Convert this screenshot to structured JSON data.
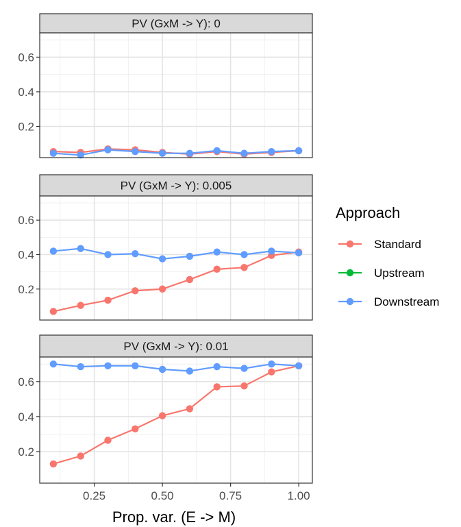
{
  "chart_data": {
    "type": "line",
    "xlabel": "Prop. var. (E -> M)",
    "x_ticks": [
      "0.25",
      "0.50",
      "0.75",
      "1.00"
    ],
    "x_tick_values": [
      0.25,
      0.5,
      0.75,
      1.0
    ],
    "xlim": [
      0.05,
      1.05
    ],
    "ylim": [
      0.02,
      0.74
    ],
    "y_ticks": [
      "0.2",
      "0.4",
      "0.6"
    ],
    "y_tick_values": [
      0.2,
      0.4,
      0.6
    ],
    "grid": true,
    "legend": {
      "title": "Approach",
      "position": "right",
      "entries": [
        {
          "label": "Standard",
          "color": "#F8766D"
        },
        {
          "label": "Upstream",
          "color": "#00BA38"
        },
        {
          "label": "Downstream",
          "color": "#619CFF"
        }
      ]
    },
    "x": [
      0.1,
      0.2,
      0.3,
      0.4,
      0.5,
      0.6,
      0.7,
      0.8,
      0.9,
      1.0
    ],
    "panels": [
      {
        "strip": "PV (GxM -> Y): 0",
        "series": [
          {
            "name": "Standard",
            "values": [
              0.055,
              0.05,
              0.07,
              0.065,
              0.05,
              0.04,
              0.055,
              0.04,
              0.05,
              0.06
            ]
          },
          {
            "name": "Downstream",
            "values": [
              0.045,
              0.035,
              0.065,
              0.055,
              0.045,
              0.045,
              0.06,
              0.045,
              0.055,
              0.06
            ]
          }
        ]
      },
      {
        "strip": "PV (GxM -> Y): 0.005",
        "series": [
          {
            "name": "Standard",
            "values": [
              0.07,
              0.105,
              0.135,
              0.19,
              0.2,
              0.255,
              0.315,
              0.325,
              0.395,
              0.415
            ]
          },
          {
            "name": "Downstream",
            "values": [
              0.42,
              0.435,
              0.4,
              0.405,
              0.375,
              0.39,
              0.415,
              0.4,
              0.42,
              0.41
            ]
          }
        ]
      },
      {
        "strip": "PV (GxM -> Y): 0.01",
        "series": [
          {
            "name": "Standard",
            "values": [
              0.13,
              0.175,
              0.265,
              0.33,
              0.405,
              0.445,
              0.57,
              0.575,
              0.655,
              0.69
            ]
          },
          {
            "name": "Downstream",
            "values": [
              0.7,
              0.685,
              0.69,
              0.69,
              0.67,
              0.66,
              0.685,
              0.675,
              0.7,
              0.69
            ]
          }
        ]
      }
    ]
  }
}
